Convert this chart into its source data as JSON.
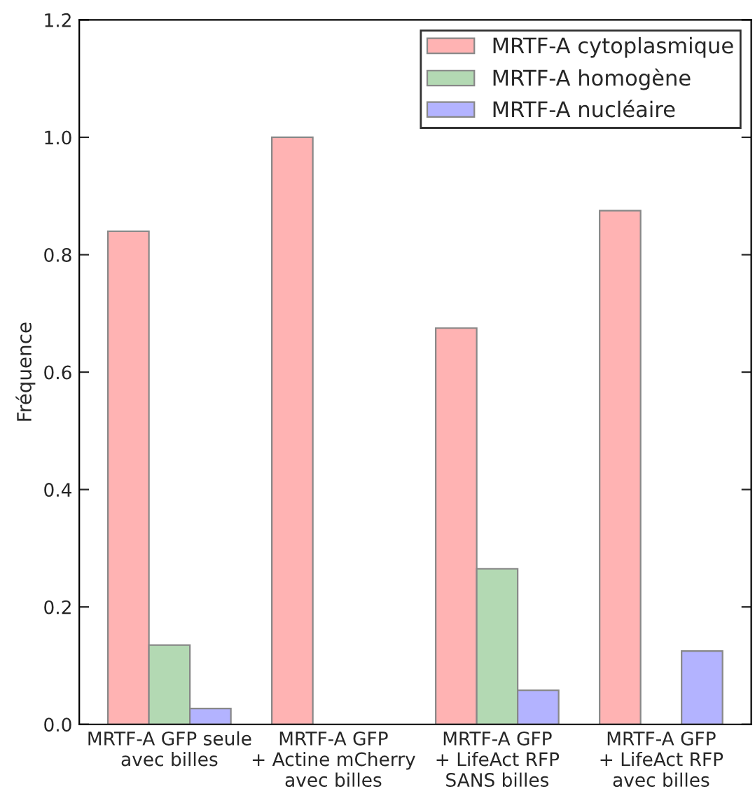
{
  "chart_data": {
    "type": "bar",
    "ylabel": "Fréquence",
    "categories": [
      "MRTF-A GFP seule\navec billes",
      "MRTF-A GFP\n+ Actine mCherry\navec billes",
      "MRTF-A GFP\n+ LifeAct RFP\nSANS billes",
      "MRTF-A GFP\n+ LifeAct RFP\navec billes"
    ],
    "series": [
      {
        "name": "MRTF-A cytoplasmique",
        "color": "#ffb3b3",
        "values": [
          0.84,
          1.0,
          0.675,
          0.875
        ]
      },
      {
        "name": "MRTF-A homogène",
        "color": "#b3d9b3",
        "values": [
          0.135,
          0,
          0.265,
          0
        ]
      },
      {
        "name": "MRTF-A nucléaire",
        "color": "#b3b3ff",
        "values": [
          0.027,
          0,
          0.058,
          0.125
        ]
      }
    ],
    "ylim": [
      0,
      1.2
    ],
    "yticks": [
      {
        "value": 0,
        "label": "0.0"
      },
      {
        "value": 0.2,
        "label": "0.2"
      },
      {
        "value": 0.4,
        "label": "0.4"
      },
      {
        "value": 0.6,
        "label": "0.6"
      },
      {
        "value": 0.8,
        "label": "0.8"
      },
      {
        "value": 1.0,
        "label": "1.0"
      },
      {
        "value": 1.2,
        "label": "1.2"
      }
    ],
    "grid": false,
    "legend": "top right"
  }
}
